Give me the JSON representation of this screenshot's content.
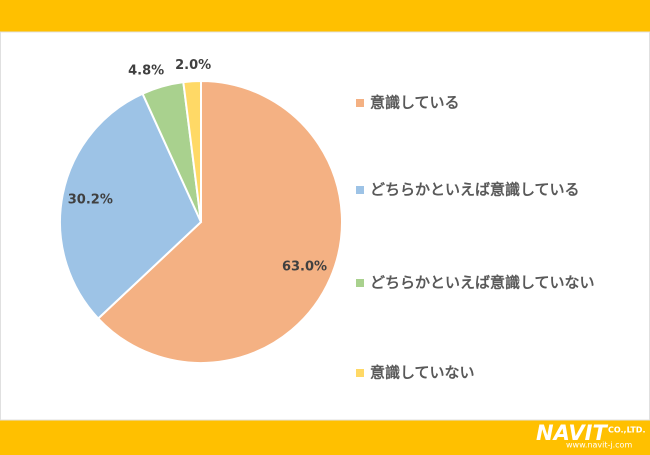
{
  "chart_data": {
    "type": "pie",
    "categories": [
      "意識している",
      "どちらかといえば意識している",
      "どちらかといえば意識していない",
      "意識していない"
    ],
    "values": [
      63.0,
      30.2,
      4.8,
      2.0
    ],
    "value_labels": [
      "63.0%",
      "30.2%",
      "4.8%",
      "2.0%"
    ],
    "colors": [
      "#f4b183",
      "#9dc3e6",
      "#a9d18e",
      "#ffd966"
    ],
    "legend": "right"
  },
  "logo": {
    "name": "NAVIT",
    "suffix": "CO.,LTD.",
    "url": "www.navit-j.com"
  }
}
